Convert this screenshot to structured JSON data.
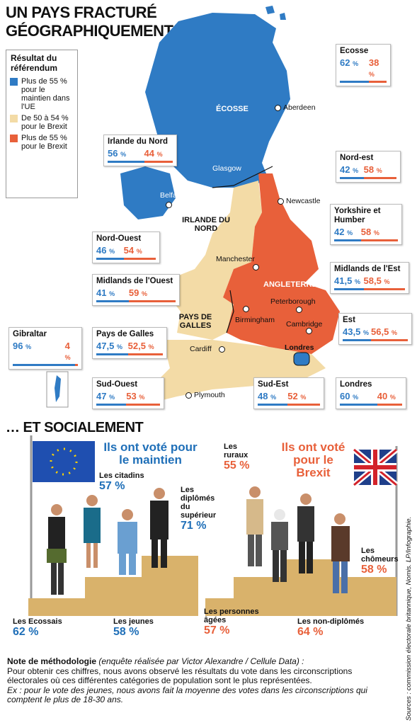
{
  "title_line1": "UN PAYS FRACTURÉ",
  "title_line2": "GÉOGRAPHIQUEMENT…",
  "legend": {
    "title": "Résultat du référendum",
    "items": [
      {
        "color": "#2f7bc4",
        "label": "Plus de 55 % pour le maintien dans l'UE"
      },
      {
        "color": "#f3dba6",
        "label": "De 50 à 54 % pour le Brexit"
      },
      {
        "color": "#e8603a",
        "label": "Plus de 55 % pour le Brexit"
      }
    ]
  },
  "colors": {
    "remain": "#2f7bc4",
    "leave": "#e8603a",
    "mild_leave": "#f3dba6"
  },
  "regions": {
    "ecosse_box": {
      "name": "Ecosse",
      "remain": "62",
      "leave": "38"
    },
    "irlande_box": {
      "name": "Irlande du Nord",
      "remain": "56",
      "leave": "44"
    },
    "nordest_box": {
      "name": "Nord-est",
      "remain": "42",
      "leave": "58"
    },
    "yorkshire_box": {
      "name": "Yorkshire et Humber",
      "remain": "42",
      "leave": "58"
    },
    "nordouest_box": {
      "name": "Nord-Ouest",
      "remain": "46",
      "leave": "54"
    },
    "midouest_box": {
      "name": "Midlands de l'Ouest",
      "remain": "41",
      "leave": "59"
    },
    "midest_box": {
      "name": "Midlands de l'Est",
      "remain": "41,5",
      "leave": "58,5"
    },
    "est_box": {
      "name": "Est",
      "remain": "43,5",
      "leave": "56,5"
    },
    "galles_box": {
      "name": "Pays de Galles",
      "remain": "47,5",
      "leave": "52,5"
    },
    "gibraltar_box": {
      "name": "Gibraltar",
      "remain": "96",
      "leave": "4"
    },
    "sudouest_box": {
      "name": "Sud-Ouest",
      "remain": "47",
      "leave": "53"
    },
    "sudest_box": {
      "name": "Sud-Est",
      "remain": "48",
      "leave": "52"
    },
    "londres_box": {
      "name": "Londres",
      "remain": "60",
      "leave": "40"
    }
  },
  "map_labels": {
    "ecosse": "ÉCOSSE",
    "irlande": "IRLANDE DU NORD",
    "angleterre": "ANGLETERRE",
    "galles": "PAYS DE GALLES"
  },
  "cities": {
    "aberdeen": "Aberdeen",
    "glasgow": "Glasgow",
    "belfast": "Belfast",
    "newcastle": "Newcastle",
    "manchester": "Manchester",
    "peterborough": "Peterborough",
    "birmingham": "Birmingham",
    "cambridge": "Cambridge",
    "cardiff": "Cardiff",
    "londres": "Londres",
    "plymouth": "Plymouth"
  },
  "pct_sign": "%",
  "section2_title": "… ET SOCIALEMENT",
  "maintien_title": "Ils ont voté pour le maintien",
  "brexit_title": "Ils ont voté pour le Brexit",
  "stats": {
    "citadins": {
      "label": "Les citadins",
      "value": "57 %"
    },
    "diplomes": {
      "label": "Les diplômés du supérieur",
      "value": "71 %"
    },
    "ecossais": {
      "label": "Les Ecossais",
      "value": "62 %"
    },
    "jeunes": {
      "label": "Les jeunes",
      "value": "58 %"
    },
    "ruraux": {
      "label": "Les ruraux",
      "value": "55 %"
    },
    "chomeurs": {
      "label": "Les chômeurs",
      "value": "58 %"
    },
    "agees": {
      "label": "Les personnes âgées",
      "value": "57 %"
    },
    "nondiplomes": {
      "label": "Les non-diplômés",
      "value": "64 %"
    }
  },
  "note": {
    "heading": "Note de méthodologie",
    "heading_paren": " (enquête réalisée par Victor Alexandre / Cellule Data) :",
    "body": "Pour obtenir ces chiffres, nous avons observé les résultats du vote dans les circonscriptions électorales où ces différentes catégories de population sont le plus représentées.",
    "example": "Ex : pour le vote des jeunes, nous avons fait la moyenne des votes dans les circonscriptions qui comptent le plus de 18-30 ans."
  },
  "sources": "Sources : commission électorale britannique, Nomis.   LP/Infographie."
}
